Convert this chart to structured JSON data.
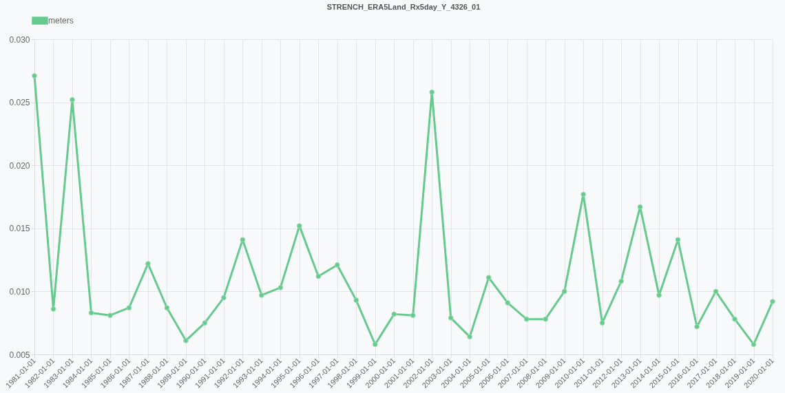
{
  "chart_data": {
    "type": "line",
    "title": "STRENCH_ERA5Land_Rx5day_Y_4326_01",
    "categories": [
      "1981-01-01",
      "1982-01-01",
      "1983-01-01",
      "1984-01-01",
      "1985-01-01",
      "1986-01-01",
      "1987-01-01",
      "1988-01-01",
      "1989-01-01",
      "1990-01-01",
      "1991-01-01",
      "1992-01-01",
      "1993-01-01",
      "1994-01-01",
      "1995-01-01",
      "1996-01-01",
      "1997-01-01",
      "1998-01-01",
      "1999-01-01",
      "2000-01-01",
      "2001-01-01",
      "2002-01-01",
      "2003-01-01",
      "2004-01-01",
      "2005-01-01",
      "2006-01-01",
      "2007-01-01",
      "2008-01-01",
      "2009-01-01",
      "2010-01-01",
      "2011-01-01",
      "2012-01-01",
      "2013-01-01",
      "2014-01-01",
      "2015-01-01",
      "2016-01-01",
      "2017-01-01",
      "2018-01-01",
      "2019-01-01",
      "2020-01-01"
    ],
    "series": [
      {
        "name": "meters",
        "color": "#66c98e",
        "values": [
          0.0271,
          0.0086,
          0.0252,
          0.0083,
          0.0081,
          0.0087,
          0.0122,
          0.0087,
          0.0061,
          0.0075,
          0.0095,
          0.0141,
          0.0097,
          0.0103,
          0.0152,
          0.0112,
          0.0121,
          0.0093,
          0.0058,
          0.0082,
          0.0081,
          0.0258,
          0.0079,
          0.0064,
          0.0111,
          0.0091,
          0.0078,
          0.0078,
          0.01,
          0.0177,
          0.0075,
          0.0108,
          0.0167,
          0.0097,
          0.0141,
          0.0072,
          0.01,
          0.0078,
          0.0058,
          0.0092
        ]
      }
    ],
    "ylim": [
      0.005,
      0.03
    ],
    "yticks": [
      0.005,
      {
        "value": 0.01,
        "label": "0.010"
      },
      0.015,
      {
        "value": 0.02,
        "label": "0.020"
      },
      0.025,
      {
        "value": 0.03,
        "label": "0.030"
      }
    ],
    "grid": true,
    "legend": "top",
    "marker": "circle",
    "line_style": "solid"
  }
}
